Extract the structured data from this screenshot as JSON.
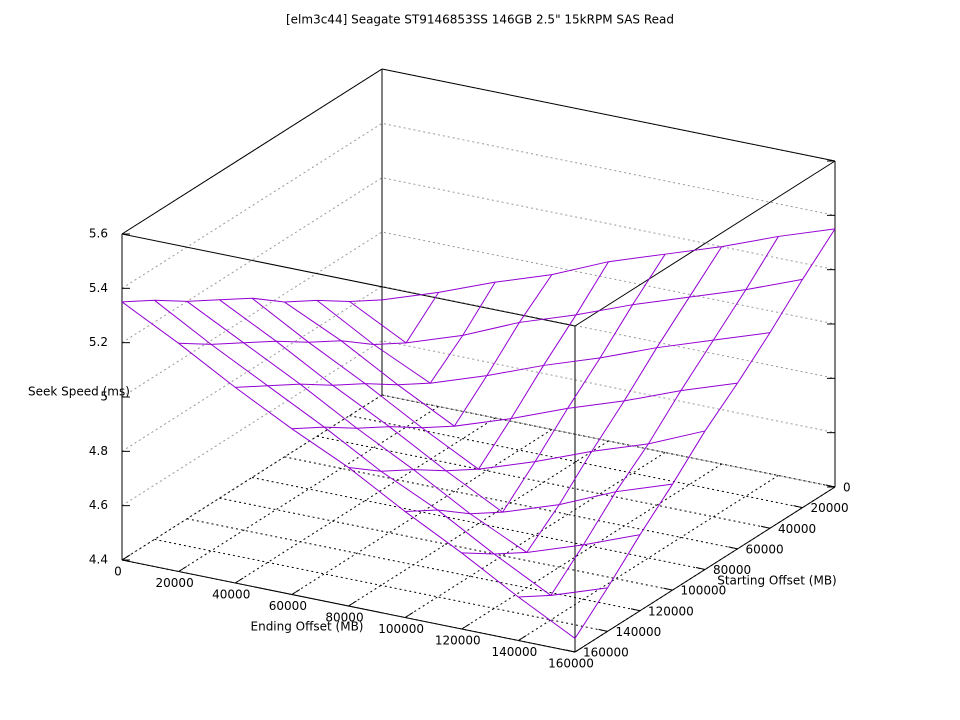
{
  "chart_data": {
    "type": "surface3d",
    "title": "[elm3c44] Seagate ST9146853SS 146GB 2.5\" 15kRPM SAS Read",
    "xlabel": "Ending Offset (MB)",
    "ylabel": "Starting Offset (MB)",
    "zlabel": "Seek Speed (ms)",
    "color": "#9400d3",
    "x": [
      0,
      20000,
      40000,
      60000,
      80000,
      100000,
      120000,
      140000,
      160000
    ],
    "y": [
      0,
      20000,
      40000,
      60000,
      80000,
      100000,
      120000,
      140000,
      160000
    ],
    "z": [
      [
        4.75,
        4.82,
        4.9,
        4.97,
        5.06,
        5.13,
        5.2,
        5.28,
        5.35
      ],
      [
        4.82,
        4.71,
        4.78,
        4.87,
        4.94,
        5.02,
        5.09,
        5.16,
        5.24
      ],
      [
        4.9,
        4.78,
        4.68,
        4.75,
        4.83,
        4.9,
        4.98,
        5.05,
        5.12
      ],
      [
        4.97,
        4.87,
        4.75,
        4.64,
        4.71,
        4.79,
        4.86,
        4.94,
        5.01
      ],
      [
        5.06,
        4.94,
        4.83,
        4.71,
        4.6,
        4.67,
        4.75,
        4.82,
        4.91
      ],
      [
        5.13,
        5.02,
        4.9,
        4.79,
        4.67,
        4.56,
        4.63,
        4.72,
        4.79
      ],
      [
        5.2,
        5.09,
        4.98,
        4.86,
        4.75,
        4.63,
        4.53,
        4.6,
        4.68
      ],
      [
        5.28,
        5.16,
        5.05,
        4.94,
        4.82,
        4.72,
        4.6,
        4.49,
        4.56
      ],
      [
        5.35,
        5.24,
        5.12,
        5.01,
        4.91,
        4.79,
        4.68,
        4.56,
        4.45
      ]
    ],
    "xlim": [
      0,
      160000
    ],
    "ylim": [
      0,
      160000
    ],
    "zlim": [
      4.4,
      5.6
    ],
    "xticks": [
      0,
      20000,
      40000,
      60000,
      80000,
      100000,
      120000,
      140000,
      160000
    ],
    "yticks": [
      0,
      20000,
      40000,
      60000,
      80000,
      100000,
      120000,
      140000,
      160000
    ],
    "zticks": [
      4.4,
      4.6,
      4.8,
      5,
      5.2,
      5.4,
      5.6
    ],
    "grid": true
  }
}
